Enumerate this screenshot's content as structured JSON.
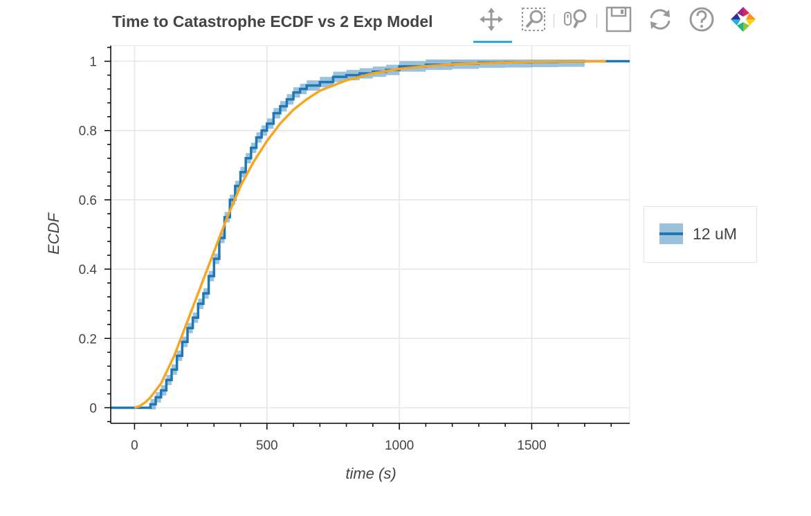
{
  "title": "Time to Catastrophe ECDF vs 2 Exp Model",
  "toolbar": {
    "tools": [
      {
        "name": "pan-tool",
        "icon": "pan-icon",
        "active": true
      },
      {
        "name": "box-zoom-tool",
        "icon": "box-zoom-icon",
        "active": false
      },
      {
        "name": "wheel-zoom-tool",
        "icon": "wheel-zoom-icon",
        "active": false
      },
      {
        "name": "save-tool",
        "icon": "save-icon",
        "active": false
      },
      {
        "name": "reset-tool",
        "icon": "reset-icon",
        "active": false
      },
      {
        "name": "help-tool",
        "icon": "help-icon",
        "active": false
      },
      {
        "name": "bokeh-logo",
        "icon": "bokeh-logo-icon",
        "active": false
      }
    ],
    "active_color": "#26aae1"
  },
  "chart_data": {
    "type": "line",
    "title": "Time to Catastrophe ECDF vs 2 Exp Model",
    "xlabel": "time (s)",
    "ylabel": "ECDF",
    "xlim": [
      -90,
      1870
    ],
    "ylim": [
      -0.045,
      1.045
    ],
    "x_ticks": [
      0,
      500,
      1000,
      1500
    ],
    "x_tick_labels": [
      "0",
      "500",
      "1000",
      "1500"
    ],
    "y_ticks": [
      0,
      0.2,
      0.4,
      0.6,
      0.8,
      1
    ],
    "y_tick_labels": [
      "0",
      "0.2",
      "0.4",
      "0.6",
      "0.8",
      "1"
    ],
    "grid": true,
    "legend_position": "right",
    "series": [
      {
        "name": "12 uM",
        "kind": "ecdf_with_confidence_band",
        "color": "#1f77b4",
        "band_color": "#1f77b4",
        "band_opacity": 0.45,
        "x": [
          -90,
          40,
          60,
          80,
          100,
          120,
          140,
          160,
          180,
          200,
          220,
          240,
          260,
          280,
          300,
          320,
          340,
          360,
          380,
          400,
          420,
          440,
          460,
          480,
          500,
          525,
          550,
          575,
          600,
          625,
          650,
          700,
          750,
          800,
          850,
          900,
          950,
          1000,
          1100,
          1200,
          1300,
          1400,
          1500,
          1600,
          1700,
          1870
        ],
        "y": [
          0,
          0,
          0.01,
          0.03,
          0.05,
          0.08,
          0.11,
          0.15,
          0.19,
          0.23,
          0.26,
          0.3,
          0.33,
          0.38,
          0.43,
          0.49,
          0.55,
          0.6,
          0.64,
          0.68,
          0.72,
          0.75,
          0.78,
          0.8,
          0.82,
          0.85,
          0.87,
          0.89,
          0.91,
          0.92,
          0.93,
          0.94,
          0.955,
          0.96,
          0.965,
          0.97,
          0.975,
          0.985,
          0.99,
          0.993,
          0.996,
          0.997,
          0.998,
          0.999,
          1.0,
          1.0
        ],
        "band_halfwidth": 0.015
      },
      {
        "name": "",
        "kind": "model_cdf",
        "color": "#f5a623",
        "x": [
          0,
          20,
          40,
          60,
          80,
          100,
          125,
          150,
          175,
          200,
          250,
          300,
          350,
          400,
          450,
          500,
          550,
          600,
          650,
          700,
          800,
          900,
          1000,
          1100,
          1200,
          1300,
          1400,
          1500,
          1600,
          1700,
          1780
        ],
        "y": [
          0,
          0.005,
          0.015,
          0.03,
          0.05,
          0.07,
          0.11,
          0.15,
          0.2,
          0.25,
          0.35,
          0.45,
          0.55,
          0.64,
          0.71,
          0.77,
          0.82,
          0.86,
          0.89,
          0.915,
          0.945,
          0.965,
          0.978,
          0.986,
          0.991,
          0.994,
          0.996,
          0.998,
          0.999,
          0.9995,
          1.0
        ]
      }
    ]
  },
  "legend": {
    "items": [
      {
        "label": "12 uM",
        "line_color": "#1f77b4",
        "fill_color": "#1f77b4"
      }
    ]
  }
}
